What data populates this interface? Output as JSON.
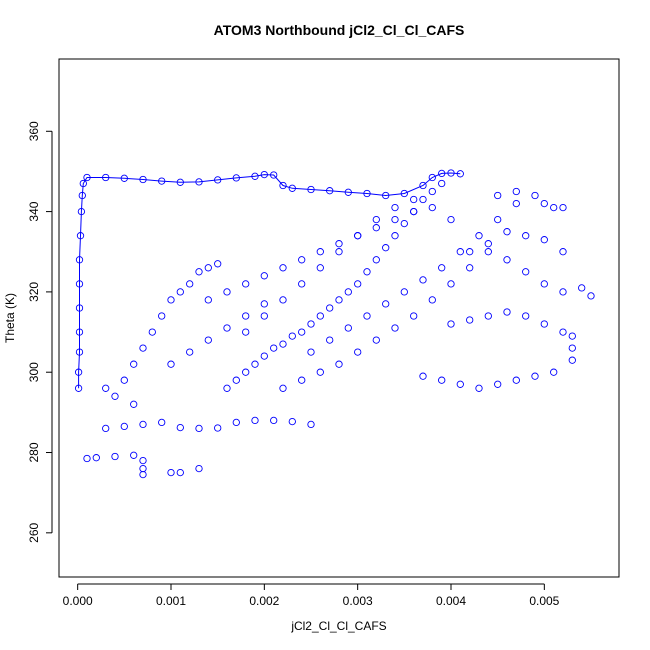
{
  "chart_data": {
    "type": "scatter",
    "title": "ATOM3 Northbound jCl2_Cl_Cl_CAFS",
    "xlabel": "jCl2_Cl_Cl_CAFS",
    "ylabel": "Theta (K)",
    "xlim": [
      -0.0002,
      0.0058
    ],
    "ylim": [
      249,
      378
    ],
    "x_ticks": [
      0.0,
      0.001,
      0.002,
      0.003,
      0.004,
      0.005
    ],
    "x_tick_labels": [
      "0.000",
      "0.001",
      "0.002",
      "0.003",
      "0.004",
      "0.005"
    ],
    "y_ticks": [
      260,
      280,
      300,
      320,
      340,
      360
    ],
    "y_tick_labels": [
      "260",
      "280",
      "300",
      "320",
      "340",
      "360"
    ],
    "grid": false,
    "marker": "open-circle",
    "point_color": "#0000ff",
    "series": [
      {
        "values_note": "flight trace (representative subset of the dense point cloud)",
        "points": [
          [
            1e-05,
            296
          ],
          [
            1e-05,
            300
          ],
          [
            2e-05,
            305
          ],
          [
            2e-05,
            310
          ],
          [
            2e-05,
            316
          ],
          [
            2e-05,
            322
          ],
          [
            2e-05,
            328
          ],
          [
            3e-05,
            334
          ],
          [
            4e-05,
            340
          ],
          [
            5e-05,
            344
          ],
          [
            6e-05,
            347
          ],
          [
            0.0001,
            348.5
          ],
          [
            0.0003,
            348.5
          ],
          [
            0.0005,
            348.3
          ],
          [
            0.0007,
            348.0
          ],
          [
            0.0009,
            347.6
          ],
          [
            0.0011,
            347.3
          ],
          [
            0.0013,
            347.4
          ],
          [
            0.0015,
            347.9
          ],
          [
            0.0017,
            348.4
          ],
          [
            0.0019,
            348.8
          ],
          [
            0.002,
            349.2
          ],
          [
            0.0021,
            349.1
          ],
          [
            0.0022,
            346.5
          ],
          [
            0.0023,
            345.8
          ],
          [
            0.0025,
            345.5
          ],
          [
            0.0027,
            345.2
          ],
          [
            0.0029,
            344.8
          ],
          [
            0.0031,
            344.5
          ],
          [
            0.0033,
            344.0
          ],
          [
            0.0035,
            344.5
          ],
          [
            0.0037,
            346.5
          ],
          [
            0.0038,
            348.5
          ],
          [
            0.0039,
            349.5
          ],
          [
            0.004,
            349.6
          ],
          [
            0.0041,
            349.4
          ]
        ]
      },
      {
        "values_note": "main cloud",
        "points": [
          [
            0.0016,
            296
          ],
          [
            0.0017,
            298
          ],
          [
            0.0018,
            300
          ],
          [
            0.0019,
            302
          ],
          [
            0.002,
            304
          ],
          [
            0.0021,
            306
          ],
          [
            0.0022,
            307
          ],
          [
            0.0023,
            309
          ],
          [
            0.0024,
            310
          ],
          [
            0.0025,
            312
          ],
          [
            0.0026,
            314
          ],
          [
            0.0027,
            316
          ],
          [
            0.0028,
            318
          ],
          [
            0.0029,
            320
          ],
          [
            0.003,
            322
          ],
          [
            0.0031,
            325
          ],
          [
            0.0032,
            328
          ],
          [
            0.0033,
            331
          ],
          [
            0.0034,
            334
          ],
          [
            0.0035,
            337
          ],
          [
            0.0036,
            340
          ],
          [
            0.0037,
            343
          ],
          [
            0.0038,
            345
          ],
          [
            0.0039,
            347
          ],
          [
            0.0018,
            310
          ],
          [
            0.002,
            314
          ],
          [
            0.0022,
            318
          ],
          [
            0.0024,
            322
          ],
          [
            0.0026,
            326
          ],
          [
            0.0028,
            330
          ],
          [
            0.003,
            334
          ],
          [
            0.0032,
            338
          ],
          [
            0.0034,
            341
          ],
          [
            0.0036,
            343
          ],
          [
            0.0038,
            341
          ],
          [
            0.004,
            338
          ],
          [
            0.0022,
            296
          ],
          [
            0.0024,
            298
          ],
          [
            0.0026,
            300
          ],
          [
            0.0028,
            302
          ],
          [
            0.003,
            305
          ],
          [
            0.0032,
            308
          ],
          [
            0.0034,
            311
          ],
          [
            0.0036,
            314
          ],
          [
            0.0038,
            318
          ],
          [
            0.004,
            322
          ],
          [
            0.0042,
            326
          ],
          [
            0.0044,
            330
          ],
          [
            0.0014,
            318
          ],
          [
            0.0016,
            320
          ],
          [
            0.0018,
            322
          ],
          [
            0.002,
            324
          ],
          [
            0.0022,
            326
          ],
          [
            0.0024,
            328
          ],
          [
            0.0026,
            330
          ],
          [
            0.0028,
            332
          ],
          [
            0.003,
            334
          ],
          [
            0.0032,
            336
          ],
          [
            0.0034,
            338
          ],
          [
            0.0036,
            340
          ],
          [
            0.001,
            302
          ],
          [
            0.0012,
            305
          ],
          [
            0.0014,
            308
          ],
          [
            0.0016,
            311
          ],
          [
            0.0018,
            314
          ],
          [
            0.002,
            317
          ],
          [
            0.0025,
            305
          ],
          [
            0.0027,
            308
          ],
          [
            0.0029,
            311
          ],
          [
            0.0031,
            314
          ],
          [
            0.0033,
            317
          ],
          [
            0.0035,
            320
          ],
          [
            0.0037,
            323
          ],
          [
            0.0039,
            326
          ],
          [
            0.0041,
            330
          ],
          [
            0.0043,
            334
          ],
          [
            0.0045,
            338
          ],
          [
            0.0047,
            342
          ]
        ]
      },
      {
        "values_note": "lower band and left excursions",
        "points": [
          [
            0.0003,
            286
          ],
          [
            0.0005,
            286.5
          ],
          [
            0.0007,
            287
          ],
          [
            0.0009,
            287.5
          ],
          [
            0.0011,
            286.2
          ],
          [
            0.0013,
            286.0
          ],
          [
            0.0015,
            286.1
          ],
          [
            0.0017,
            287.5
          ],
          [
            0.0019,
            288.0
          ],
          [
            0.0021,
            288.0
          ],
          [
            0.0023,
            287.7
          ],
          [
            0.0025,
            287.0
          ],
          [
            0.0001,
            278.5
          ],
          [
            0.0002,
            278.7
          ],
          [
            0.0004,
            279.0
          ],
          [
            0.0006,
            279.3
          ],
          [
            0.0007,
            278.0
          ],
          [
            0.0007,
            276.0
          ],
          [
            0.0007,
            274.5
          ],
          [
            0.001,
            275.0
          ],
          [
            0.0011,
            275.0
          ],
          [
            0.0013,
            276.0
          ],
          [
            0.0006,
            292
          ],
          [
            0.0004,
            294
          ],
          [
            0.0003,
            296
          ],
          [
            0.0005,
            298
          ],
          [
            0.0006,
            302
          ],
          [
            0.0007,
            306
          ],
          [
            0.0008,
            310
          ],
          [
            0.0009,
            314
          ],
          [
            0.001,
            318
          ],
          [
            0.0011,
            320
          ],
          [
            0.0012,
            322
          ],
          [
            0.0013,
            325
          ],
          [
            0.0014,
            326
          ],
          [
            0.0015,
            327
          ]
        ]
      },
      {
        "values_note": "right-side excursions",
        "points": [
          [
            0.0042,
            330
          ],
          [
            0.0044,
            332
          ],
          [
            0.0046,
            328
          ],
          [
            0.0048,
            325
          ],
          [
            0.005,
            322
          ],
          [
            0.0052,
            320
          ],
          [
            0.0054,
            321
          ],
          [
            0.0055,
            319
          ],
          [
            0.0048,
            314
          ],
          [
            0.005,
            312
          ],
          [
            0.0052,
            310
          ],
          [
            0.0053,
            309
          ],
          [
            0.0053,
            306
          ],
          [
            0.0053,
            303
          ],
          [
            0.0051,
            300
          ],
          [
            0.0049,
            299
          ],
          [
            0.0047,
            298
          ],
          [
            0.0045,
            297
          ],
          [
            0.0043,
            296
          ],
          [
            0.0041,
            297
          ],
          [
            0.0039,
            298
          ],
          [
            0.0037,
            299
          ],
          [
            0.0045,
            344
          ],
          [
            0.0047,
            345
          ],
          [
            0.0049,
            344
          ],
          [
            0.005,
            342
          ],
          [
            0.0051,
            341
          ],
          [
            0.0052,
            341
          ],
          [
            0.0046,
            335
          ],
          [
            0.0048,
            334
          ],
          [
            0.005,
            333
          ],
          [
            0.0052,
            330
          ],
          [
            0.004,
            312
          ],
          [
            0.0042,
            313
          ],
          [
            0.0044,
            314
          ],
          [
            0.0046,
            315
          ]
        ]
      }
    ]
  }
}
